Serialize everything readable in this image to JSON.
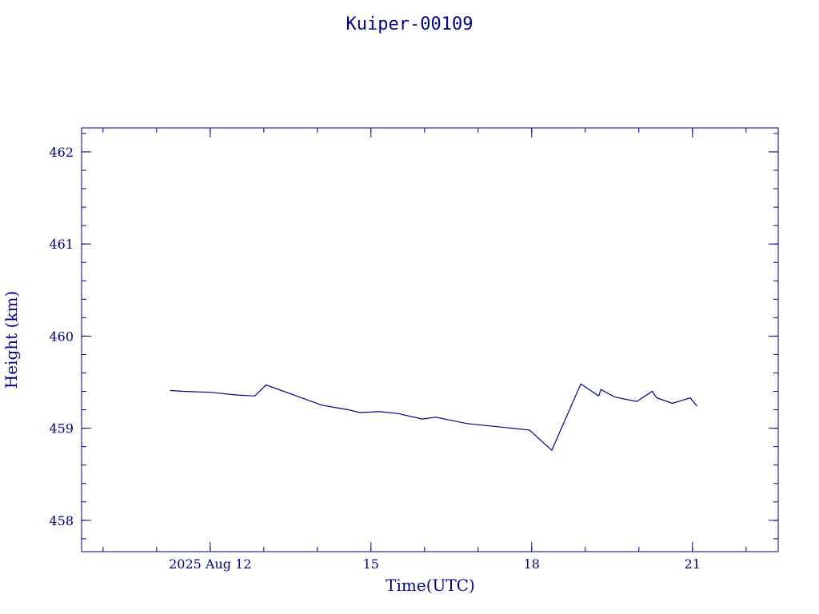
{
  "chart_data": {
    "type": "line",
    "title": "Kuiper-00109",
    "xlabel": "Time(UTC)",
    "ylabel": "Height (km)",
    "xlim": [
      "2025-08-09T14:24",
      "2025-08-22T14:24"
    ],
    "ylim": [
      457.66,
      462.26
    ],
    "x_major_ticks": [
      {
        "x": "2025-08-12T00:00",
        "label": "2025 Aug 12"
      },
      {
        "x": "2025-08-15T00:00",
        "label": "15"
      },
      {
        "x": "2025-08-18T00:00",
        "label": "18"
      },
      {
        "x": "2025-08-21T00:00",
        "label": "21"
      }
    ],
    "x_minor_tick_step_days": 1,
    "y_major_ticks": [
      458,
      459,
      460,
      461,
      462
    ],
    "y_minor_tick_step": 0.2,
    "grid": false,
    "color": "#00008b",
    "series": [
      {
        "x": [
          "2025-08-11T06:00",
          "2025-08-11T12:00",
          "2025-08-12T00:00",
          "2025-08-12T12:00",
          "2025-08-12T20:00",
          "2025-08-13T01:00",
          "2025-08-14T02:00",
          "2025-08-14T14:00",
          "2025-08-14T19:00",
          "2025-08-15T04:00",
          "2025-08-15T12:00",
          "2025-08-15T23:00",
          "2025-08-16T05:00",
          "2025-08-16T19:00",
          "2025-08-17T23:00",
          "2025-08-18T09:00",
          "2025-08-18T22:00",
          "2025-08-19T06:00",
          "2025-08-19T07:00",
          "2025-08-19T13:00",
          "2025-08-19T23:00",
          "2025-08-20T06:00",
          "2025-08-20T08:00",
          "2025-08-20T15:00",
          "2025-08-20T23:00",
          "2025-08-21T02:00"
        ],
        "y": [
          459.41,
          459.4,
          459.39,
          459.36,
          459.35,
          459.47,
          459.25,
          459.2,
          459.17,
          459.18,
          459.16,
          459.1,
          459.12,
          459.05,
          458.98,
          458.76,
          459.48,
          459.35,
          459.42,
          459.34,
          459.29,
          459.4,
          459.33,
          459.27,
          459.33,
          459.24
        ]
      }
    ]
  }
}
